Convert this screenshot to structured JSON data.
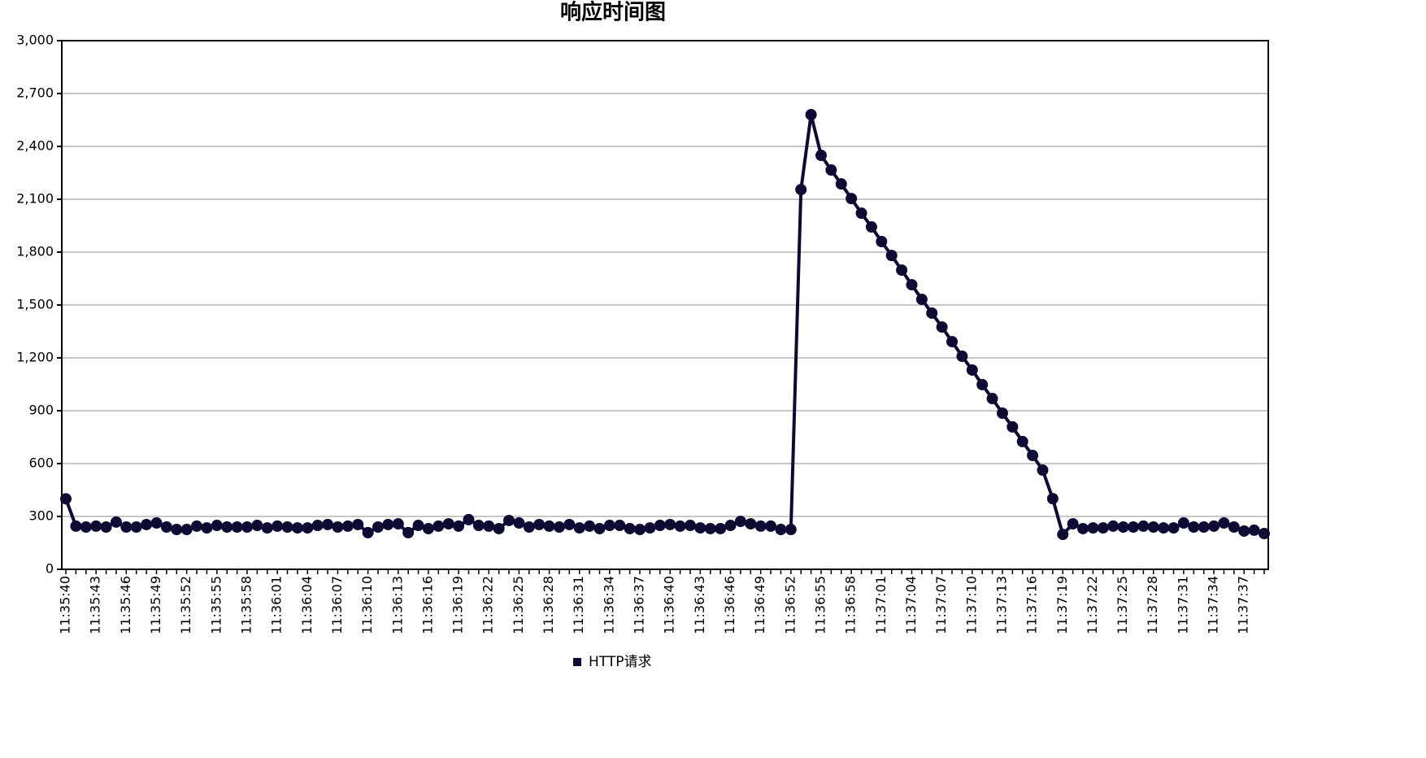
{
  "chart_data": {
    "type": "line",
    "title": "响应时间图",
    "categories": [
      "11:35:40",
      null,
      null,
      "11:35:43",
      null,
      null,
      "11:35:46",
      null,
      null,
      "11:35:49",
      null,
      null,
      "11:35:52",
      null,
      null,
      "11:35:55",
      null,
      null,
      "11:35:58",
      null,
      null,
      "11:36:01",
      null,
      null,
      "11:36:04",
      null,
      null,
      "11:36:07",
      null,
      null,
      "11:36:10",
      null,
      null,
      "11:36:13",
      null,
      null,
      "11:36:16",
      null,
      null,
      "11:36:19",
      null,
      null,
      "11:36:22",
      null,
      null,
      "11:36:25",
      null,
      null,
      "11:36:28",
      null,
      null,
      "11:36:31",
      null,
      null,
      "11:36:34",
      null,
      null,
      "11:36:37",
      null,
      null,
      "11:36:40",
      null,
      null,
      "11:36:43",
      null,
      null,
      "11:36:46",
      null,
      null,
      "11:36:49",
      null,
      null,
      "11:36:52",
      null,
      null,
      "11:36:55",
      null,
      null,
      "11:36:58",
      null,
      null,
      "11:37:01",
      null,
      null,
      "11:37:04",
      null,
      null,
      "11:37:07",
      null,
      null,
      "11:37:10",
      null,
      null,
      "11:37:13",
      null,
      null,
      "11:37:16",
      null,
      null,
      "11:37:19",
      null,
      null,
      "11:37:22",
      null,
      null,
      "11:37:25",
      null,
      null,
      "11:37:28",
      null,
      null,
      "11:37:31",
      null,
      null,
      "11:37:34",
      null,
      null,
      "11:37:37",
      null,
      null
    ],
    "series": [
      {
        "name": "HTTP请求",
        "color": "#0d0a33",
        "values": [
          400,
          245,
          240,
          245,
          240,
          268,
          240,
          240,
          254,
          263,
          240,
          226,
          226,
          245,
          235,
          249,
          240,
          240,
          240,
          249,
          235,
          245,
          240,
          235,
          235,
          249,
          254,
          240,
          245,
          254,
          208,
          240,
          254,
          258,
          208,
          249,
          231,
          245,
          258,
          245,
          282,
          249,
          245,
          231,
          277,
          263,
          240,
          254,
          245,
          240,
          254,
          235,
          245,
          231,
          249,
          249,
          231,
          226,
          235,
          249,
          254,
          245,
          249,
          235,
          231,
          231,
          249,
          272,
          258,
          245,
          245,
          226,
          226,
          2155,
          2580,
          2349,
          2266,
          2187,
          2104,
          2021,
          1943,
          1860,
          1781,
          1698,
          1615,
          1532,
          1454,
          1375,
          1292,
          1209,
          1131,
          1048,
          969,
          886,
          808,
          725,
          646,
          563,
          401,
          198,
          258,
          231,
          235,
          235,
          245,
          240,
          240,
          245,
          240,
          235,
          235,
          263,
          240,
          240,
          245,
          263,
          240,
          217,
          222,
          203
        ]
      }
    ],
    "ylim": [
      0,
      3000
    ],
    "yticks": [
      0,
      {
        "value": 300,
        "label": "300"
      },
      600,
      900,
      {
        "value": 1200,
        "label": "1,200"
      },
      {
        "value": 1500,
        "label": "1,500"
      },
      {
        "value": 1800,
        "label": "1,800"
      },
      {
        "value": 2100,
        "label": "2,100"
      },
      {
        "value": 2400,
        "label": "2,400"
      },
      {
        "value": 2700,
        "label": "2,700"
      },
      {
        "value": 3000,
        "label": "3,000"
      }
    ],
    "grid": true,
    "legend": "bottom"
  }
}
